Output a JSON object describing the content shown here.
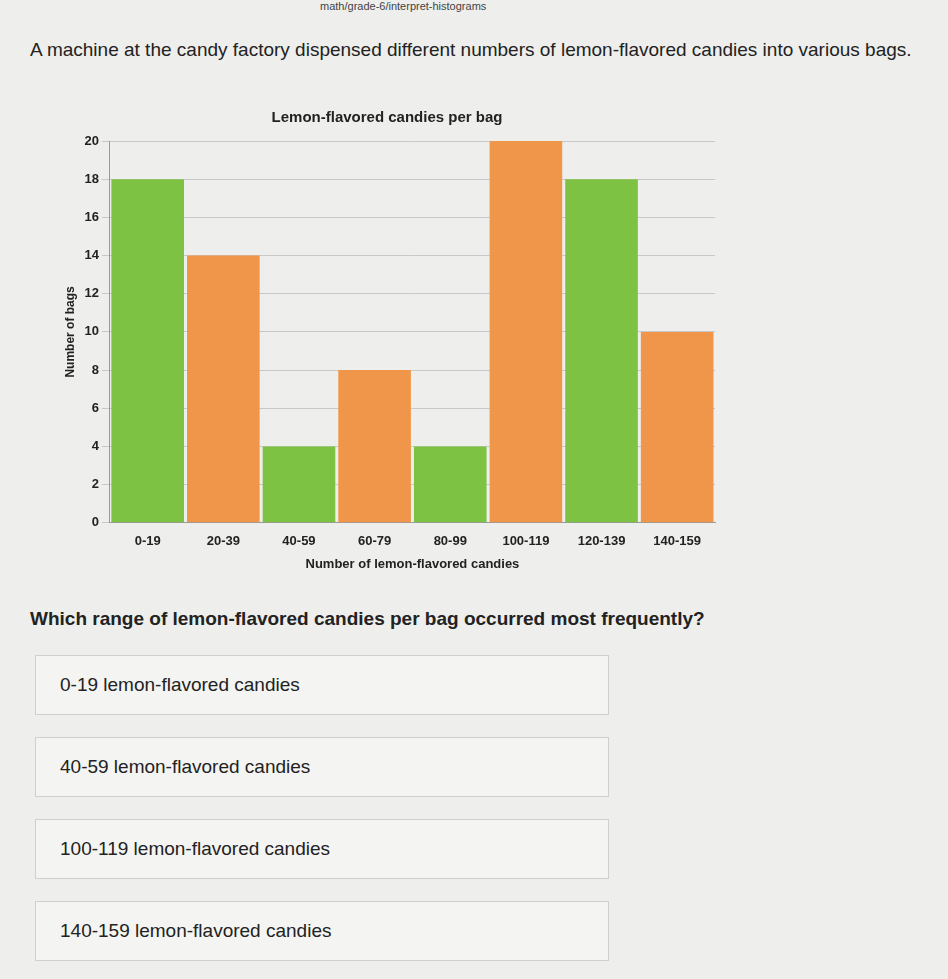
{
  "page": {
    "url": "math/grade-6/interpret-histograms",
    "intro": "A machine at the candy factory dispensed different numbers of lemon-flavored candies into various bags.",
    "question": "Which range of lemon-flavored candies per bag occurred most frequently?",
    "options": [
      "0-19 lemon-flavored candies",
      "40-59 lemon-flavored candies",
      "100-119 lemon-flavored candies",
      "140-159 lemon-flavored candies"
    ]
  },
  "chart_data": {
    "type": "bar",
    "title": "Lemon-flavored candies per bag",
    "x_label": "Number of lemon-flavored candies",
    "y_label": "Number of bags",
    "categories": [
      "0-19",
      "20-39",
      "40-59",
      "60-79",
      "80-99",
      "100-119",
      "120-139",
      "140-159"
    ],
    "values": [
      18,
      14,
      4,
      8,
      4,
      20,
      18,
      10
    ],
    "colors": [
      "#7dc242",
      "#f0964a",
      "#7dc242",
      "#f0964a",
      "#7dc242",
      "#f0964a",
      "#7dc242",
      "#f0964a"
    ],
    "ylim": [
      0,
      20
    ],
    "yticks": [
      0,
      2,
      4,
      6,
      8,
      10,
      12,
      14,
      16,
      18,
      20
    ],
    "grid": true
  }
}
